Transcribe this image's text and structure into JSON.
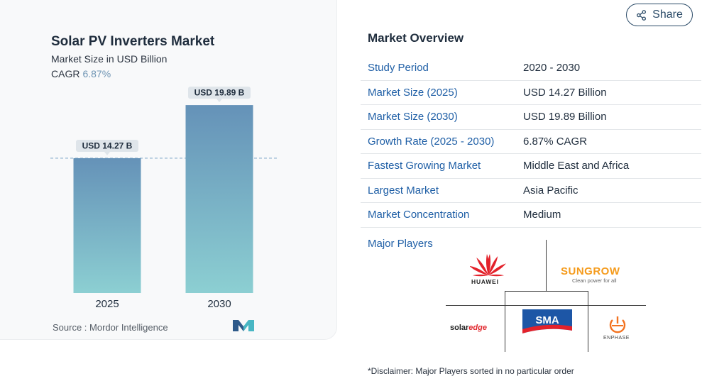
{
  "chart": {
    "title": "Solar PV Inverters Market",
    "subtitle": "Market Size in USD Billion",
    "cagr_label": "CAGR",
    "cagr_value": "6.87%",
    "source": "Source :  Mordor Intelligence"
  },
  "chart_data": {
    "type": "bar",
    "title": "Solar PV Inverters Market",
    "ylabel": "Market Size in USD Billion",
    "categories": [
      "2025",
      "2030"
    ],
    "values": [
      14.27,
      19.89
    ],
    "data_labels": [
      "USD 14.27 B",
      "USD 19.89 B"
    ],
    "reference_line_value": 14.27,
    "ylim": [
      0,
      22
    ],
    "grid": false,
    "colors": {
      "bar_top": "#6592b8",
      "bar_bottom": "#8ccfd2",
      "label_bg": "#dfe5ea",
      "ref_line": "#8ab0cf"
    }
  },
  "share": {
    "label": "Share",
    "icon": "share-icon"
  },
  "overview": {
    "title": "Market Overview",
    "rows": [
      {
        "label": "Study Period",
        "value": "2020 - 2030"
      },
      {
        "label": "Market Size (2025)",
        "value": "USD 14.27 Billion"
      },
      {
        "label": "Market Size (2030)",
        "value": "USD 19.89 Billion"
      },
      {
        "label": "Growth Rate (2025 - 2030)",
        "value": "6.87% CAGR"
      },
      {
        "label": "Fastest Growing Market",
        "value": "Middle East and Africa"
      },
      {
        "label": "Largest Market",
        "value": "Asia Pacific"
      },
      {
        "label": "Market Concentration",
        "value": "Medium"
      }
    ],
    "players_label": "Major Players",
    "players": {
      "huawei": "HUAWEI",
      "sungrow": "SUNGROW",
      "sungrow_tagline": "Clean power for all",
      "sma": "SMA",
      "solaredge_solar": "solar",
      "solaredge_edge": "edge",
      "enphase": "ENPHASE"
    },
    "disclaimer": "*Disclaimer: Major Players sorted in no particular order"
  }
}
